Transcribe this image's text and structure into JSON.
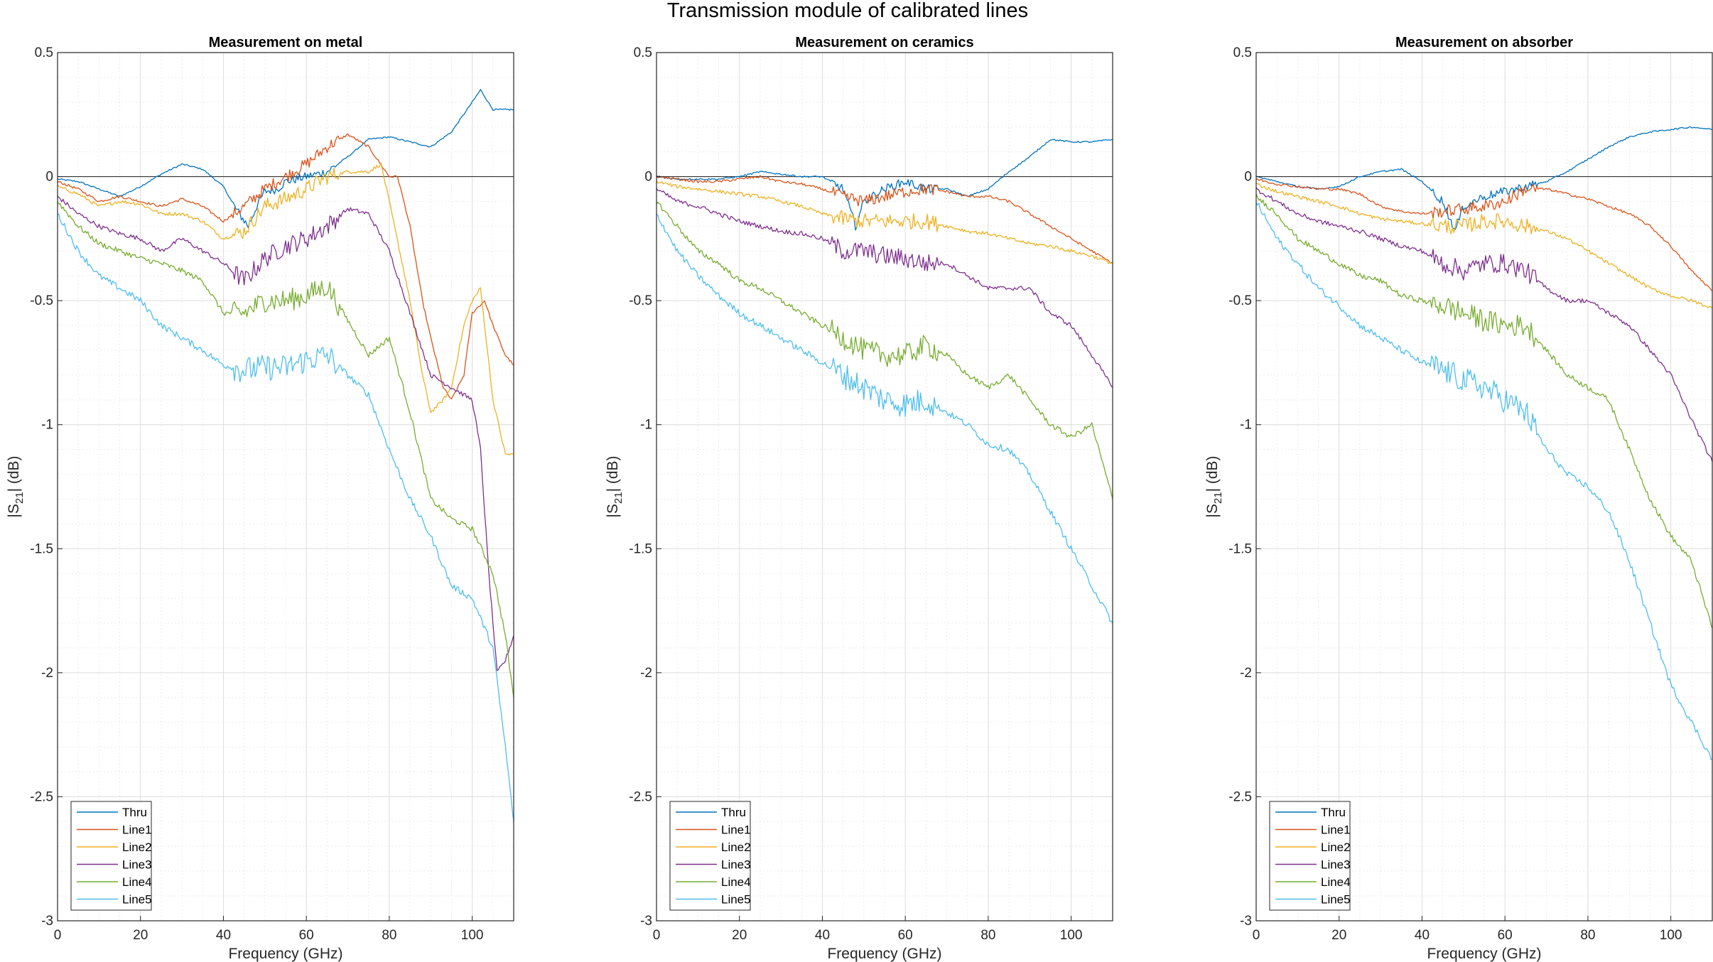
{
  "figure": {
    "title": "Transmission module of calibrated lines"
  },
  "chart_data": [
    {
      "type": "line",
      "title": "Measurement on metal",
      "xlabel": "Frequency (GHz)",
      "ylabel": "|S21| (dB)",
      "xlim": [
        0,
        110
      ],
      "ylim": [
        -3,
        0.5
      ],
      "xticks": [
        "0",
        "20",
        "40",
        "60",
        "80",
        "100"
      ],
      "yticks": [
        "0.5",
        "0",
        "-0.5",
        "-1",
        "-1.5",
        "-2",
        "-2.5",
        "-3"
      ],
      "grid": true,
      "legend": "bottom-left",
      "series": [
        {
          "name": "Thru",
          "color": "#0072BD",
          "x": [
            0,
            5,
            10,
            15,
            20,
            25,
            30,
            35,
            40,
            43,
            46,
            48,
            50,
            53,
            55,
            60,
            65,
            70,
            75,
            80,
            85,
            90,
            95,
            100,
            102,
            105,
            110
          ],
          "y": [
            -0.01,
            -0.02,
            -0.05,
            -0.08,
            -0.04,
            0.01,
            0.05,
            0.03,
            -0.04,
            -0.13,
            -0.2,
            -0.12,
            -0.06,
            -0.05,
            -0.02,
            0.0,
            0.02,
            0.08,
            0.15,
            0.16,
            0.14,
            0.12,
            0.18,
            0.3,
            0.35,
            0.27,
            0.27
          ]
        },
        {
          "name": "Line1",
          "color": "#D95319",
          "x": [
            0,
            5,
            10,
            15,
            20,
            25,
            30,
            35,
            40,
            45,
            50,
            55,
            60,
            65,
            70,
            75,
            80,
            82,
            85,
            88,
            90,
            93,
            95,
            98,
            100,
            103,
            105,
            108,
            110
          ],
          "y": [
            -0.02,
            -0.05,
            -0.1,
            -0.08,
            -0.1,
            -0.12,
            -0.09,
            -0.12,
            -0.18,
            -0.12,
            -0.05,
            0.0,
            0.05,
            0.12,
            0.17,
            0.12,
            0.0,
            0.0,
            -0.2,
            -0.5,
            -0.65,
            -0.85,
            -0.9,
            -0.8,
            -0.55,
            -0.5,
            -0.6,
            -0.72,
            -0.76
          ]
        },
        {
          "name": "Line2",
          "color": "#EDB120",
          "x": [
            0,
            5,
            10,
            15,
            20,
            25,
            30,
            35,
            40,
            45,
            50,
            55,
            60,
            65,
            70,
            75,
            78,
            80,
            85,
            88,
            90,
            93,
            95,
            98,
            100,
            102,
            105,
            108,
            110
          ],
          "y": [
            -0.04,
            -0.07,
            -0.12,
            -0.1,
            -0.11,
            -0.15,
            -0.15,
            -0.18,
            -0.25,
            -0.22,
            -0.12,
            -0.09,
            -0.05,
            0.0,
            0.02,
            0.02,
            0.05,
            -0.1,
            -0.5,
            -0.8,
            -0.95,
            -0.9,
            -0.85,
            -0.6,
            -0.5,
            -0.45,
            -0.9,
            -1.12,
            -1.12
          ]
        },
        {
          "name": "Line3",
          "color": "#7E2F8E",
          "x": [
            0,
            5,
            10,
            15,
            20,
            25,
            30,
            35,
            40,
            45,
            50,
            55,
            60,
            65,
            70,
            75,
            80,
            85,
            90,
            95,
            100,
            102,
            104,
            106,
            108,
            110
          ],
          "y": [
            -0.08,
            -0.15,
            -0.2,
            -0.23,
            -0.25,
            -0.3,
            -0.25,
            -0.3,
            -0.35,
            -0.42,
            -0.33,
            -0.28,
            -0.25,
            -0.2,
            -0.13,
            -0.15,
            -0.3,
            -0.55,
            -0.8,
            -0.85,
            -0.9,
            -1.1,
            -1.6,
            -2.0,
            -1.95,
            -1.85
          ]
        },
        {
          "name": "Line4",
          "color": "#77AC30",
          "x": [
            0,
            5,
            10,
            15,
            20,
            25,
            30,
            35,
            40,
            45,
            50,
            55,
            60,
            65,
            70,
            75,
            80,
            85,
            90,
            95,
            100,
            105,
            108,
            110
          ],
          "y": [
            -0.1,
            -0.2,
            -0.27,
            -0.3,
            -0.33,
            -0.35,
            -0.38,
            -0.42,
            -0.55,
            -0.55,
            -0.5,
            -0.5,
            -0.48,
            -0.44,
            -0.58,
            -0.72,
            -0.65,
            -0.95,
            -1.3,
            -1.38,
            -1.42,
            -1.6,
            -1.85,
            -2.1
          ]
        },
        {
          "name": "Line5",
          "color": "#4DBEEE",
          "x": [
            0,
            5,
            10,
            15,
            20,
            25,
            30,
            35,
            40,
            45,
            50,
            55,
            60,
            65,
            70,
            75,
            80,
            85,
            90,
            95,
            100,
            105,
            108,
            110
          ],
          "y": [
            -0.15,
            -0.3,
            -0.4,
            -0.45,
            -0.5,
            -0.6,
            -0.65,
            -0.7,
            -0.76,
            -0.78,
            -0.77,
            -0.77,
            -0.74,
            -0.72,
            -0.8,
            -0.88,
            -1.1,
            -1.3,
            -1.45,
            -1.65,
            -1.7,
            -1.9,
            -2.3,
            -2.6
          ]
        }
      ]
    },
    {
      "type": "line",
      "title": "Measurement on ceramics",
      "xlabel": "Frequency (GHz)",
      "ylabel": "|S21| (dB)",
      "xlim": [
        0,
        110
      ],
      "ylim": [
        -3,
        0.5
      ],
      "xticks": [
        "0",
        "20",
        "40",
        "60",
        "80",
        "100"
      ],
      "yticks": [
        "0.5",
        "0",
        "-0.5",
        "-1",
        "-1.5",
        "-2",
        "-2.5",
        "-3"
      ],
      "grid": true,
      "legend": "bottom-left",
      "series": [
        {
          "name": "Thru",
          "color": "#0072BD",
          "x": [
            0,
            5,
            10,
            15,
            20,
            25,
            30,
            35,
            40,
            45,
            48,
            50,
            55,
            60,
            65,
            70,
            75,
            80,
            85,
            90,
            95,
            100,
            105,
            110
          ],
          "y": [
            0.0,
            -0.01,
            -0.01,
            -0.01,
            0.0,
            0.02,
            0.01,
            0.0,
            0.0,
            -0.05,
            -0.2,
            -0.1,
            -0.05,
            -0.02,
            -0.05,
            -0.05,
            -0.08,
            -0.05,
            0.02,
            0.08,
            0.15,
            0.14,
            0.14,
            0.15
          ]
        },
        {
          "name": "Line1",
          "color": "#D95319",
          "x": [
            0,
            5,
            10,
            15,
            20,
            25,
            30,
            35,
            40,
            45,
            50,
            55,
            60,
            65,
            70,
            75,
            80,
            85,
            90,
            95,
            100,
            105,
            110
          ],
          "y": [
            0.0,
            -0.01,
            -0.02,
            -0.02,
            -0.01,
            0.0,
            -0.02,
            -0.03,
            -0.05,
            -0.08,
            -0.1,
            -0.08,
            -0.06,
            -0.05,
            -0.06,
            -0.08,
            -0.08,
            -0.1,
            -0.15,
            -0.2,
            -0.25,
            -0.3,
            -0.35
          ]
        },
        {
          "name": "Line2",
          "color": "#EDB120",
          "x": [
            0,
            5,
            10,
            15,
            20,
            25,
            30,
            35,
            40,
            45,
            50,
            55,
            60,
            65,
            70,
            75,
            80,
            85,
            90,
            95,
            100,
            105,
            110
          ],
          "y": [
            -0.02,
            -0.04,
            -0.05,
            -0.06,
            -0.07,
            -0.08,
            -0.1,
            -0.12,
            -0.15,
            -0.17,
            -0.18,
            -0.18,
            -0.18,
            -0.18,
            -0.2,
            -0.22,
            -0.23,
            -0.25,
            -0.27,
            -0.28,
            -0.3,
            -0.32,
            -0.35
          ]
        },
        {
          "name": "Line3",
          "color": "#7E2F8E",
          "x": [
            0,
            5,
            10,
            15,
            20,
            25,
            30,
            35,
            40,
            45,
            50,
            55,
            60,
            65,
            70,
            75,
            80,
            85,
            90,
            95,
            100,
            105,
            110
          ],
          "y": [
            -0.05,
            -0.1,
            -0.12,
            -0.15,
            -0.18,
            -0.2,
            -0.22,
            -0.23,
            -0.25,
            -0.3,
            -0.3,
            -0.32,
            -0.33,
            -0.35,
            -0.35,
            -0.4,
            -0.45,
            -0.45,
            -0.45,
            -0.55,
            -0.6,
            -0.72,
            -0.85
          ]
        },
        {
          "name": "Line4",
          "color": "#77AC30",
          "x": [
            0,
            5,
            10,
            15,
            20,
            25,
            30,
            35,
            40,
            45,
            50,
            55,
            60,
            65,
            70,
            75,
            80,
            85,
            90,
            95,
            100,
            105,
            110
          ],
          "y": [
            -0.1,
            -0.2,
            -0.3,
            -0.35,
            -0.42,
            -0.45,
            -0.5,
            -0.55,
            -0.6,
            -0.65,
            -0.7,
            -0.72,
            -0.72,
            -0.68,
            -0.72,
            -0.8,
            -0.85,
            -0.8,
            -0.9,
            -1.0,
            -1.05,
            -1.0,
            -1.3
          ]
        },
        {
          "name": "Line5",
          "color": "#4DBEEE",
          "x": [
            0,
            5,
            10,
            15,
            20,
            25,
            30,
            35,
            40,
            45,
            50,
            55,
            60,
            65,
            70,
            75,
            80,
            85,
            90,
            95,
            100,
            105,
            110
          ],
          "y": [
            -0.15,
            -0.3,
            -0.4,
            -0.48,
            -0.55,
            -0.6,
            -0.65,
            -0.7,
            -0.75,
            -0.8,
            -0.85,
            -0.9,
            -0.92,
            -0.9,
            -0.95,
            -1.0,
            -1.08,
            -1.1,
            -1.2,
            -1.35,
            -1.5,
            -1.65,
            -1.8
          ]
        }
      ]
    },
    {
      "type": "line",
      "title": "Measurement on absorber",
      "xlabel": "Frequency (GHz)",
      "ylabel": "|S21| (dB)",
      "xlim": [
        0,
        110
      ],
      "ylim": [
        -3,
        0.5
      ],
      "xticks": [
        "0",
        "20",
        "40",
        "60",
        "80",
        "100"
      ],
      "yticks": [
        "0.5",
        "0",
        "-0.5",
        "-1",
        "-1.5",
        "-2",
        "-2.5",
        "-3"
      ],
      "grid": true,
      "legend": "bottom-left",
      "series": [
        {
          "name": "Thru",
          "color": "#0072BD",
          "x": [
            0,
            5,
            10,
            15,
            20,
            25,
            30,
            35,
            40,
            45,
            48,
            50,
            55,
            60,
            65,
            70,
            75,
            80,
            85,
            90,
            95,
            100,
            105,
            110
          ],
          "y": [
            0.0,
            -0.02,
            -0.04,
            -0.05,
            -0.04,
            0.0,
            0.02,
            0.03,
            -0.02,
            -0.1,
            -0.22,
            -0.12,
            -0.08,
            -0.06,
            -0.04,
            -0.02,
            0.02,
            0.07,
            0.12,
            0.16,
            0.18,
            0.19,
            0.2,
            0.19
          ]
        },
        {
          "name": "Line1",
          "color": "#D95319",
          "x": [
            0,
            5,
            10,
            15,
            20,
            25,
            30,
            35,
            40,
            45,
            50,
            55,
            60,
            65,
            70,
            75,
            80,
            85,
            90,
            95,
            100,
            105,
            110
          ],
          "y": [
            -0.01,
            -0.03,
            -0.04,
            -0.05,
            -0.05,
            -0.07,
            -0.12,
            -0.14,
            -0.15,
            -0.14,
            -0.13,
            -0.12,
            -0.1,
            -0.05,
            -0.05,
            -0.07,
            -0.09,
            -0.12,
            -0.15,
            -0.2,
            -0.28,
            -0.38,
            -0.46
          ]
        },
        {
          "name": "Line2",
          "color": "#EDB120",
          "x": [
            0,
            5,
            10,
            15,
            20,
            25,
            30,
            35,
            40,
            45,
            50,
            55,
            60,
            65,
            70,
            75,
            80,
            85,
            90,
            95,
            100,
            105,
            110
          ],
          "y": [
            -0.03,
            -0.06,
            -0.08,
            -0.1,
            -0.12,
            -0.15,
            -0.17,
            -0.18,
            -0.19,
            -0.2,
            -0.2,
            -0.18,
            -0.18,
            -0.2,
            -0.22,
            -0.25,
            -0.3,
            -0.35,
            -0.4,
            -0.45,
            -0.48,
            -0.5,
            -0.53
          ]
        },
        {
          "name": "Line3",
          "color": "#7E2F8E",
          "x": [
            0,
            5,
            10,
            15,
            20,
            25,
            30,
            35,
            40,
            45,
            50,
            55,
            60,
            65,
            70,
            75,
            80,
            85,
            90,
            95,
            100,
            105,
            110
          ],
          "y": [
            -0.05,
            -0.1,
            -0.15,
            -0.18,
            -0.2,
            -0.22,
            -0.25,
            -0.28,
            -0.3,
            -0.35,
            -0.38,
            -0.35,
            -0.35,
            -0.38,
            -0.45,
            -0.5,
            -0.5,
            -0.55,
            -0.6,
            -0.7,
            -0.8,
            -0.98,
            -1.15
          ]
        },
        {
          "name": "Line4",
          "color": "#77AC30",
          "x": [
            0,
            5,
            10,
            15,
            20,
            25,
            30,
            35,
            40,
            45,
            50,
            55,
            60,
            65,
            70,
            75,
            80,
            85,
            90,
            95,
            100,
            105,
            110
          ],
          "y": [
            -0.08,
            -0.15,
            -0.25,
            -0.3,
            -0.35,
            -0.4,
            -0.42,
            -0.48,
            -0.5,
            -0.52,
            -0.55,
            -0.58,
            -0.6,
            -0.6,
            -0.7,
            -0.8,
            -0.85,
            -0.9,
            -1.1,
            -1.3,
            -1.45,
            -1.55,
            -1.82
          ]
        },
        {
          "name": "Line5",
          "color": "#4DBEEE",
          "x": [
            0,
            5,
            10,
            15,
            20,
            25,
            30,
            35,
            40,
            45,
            50,
            55,
            60,
            65,
            70,
            75,
            80,
            85,
            90,
            95,
            100,
            105,
            110
          ],
          "y": [
            -0.1,
            -0.25,
            -0.35,
            -0.45,
            -0.52,
            -0.6,
            -0.65,
            -0.7,
            -0.75,
            -0.78,
            -0.82,
            -0.85,
            -0.9,
            -0.95,
            -1.1,
            -1.2,
            -1.25,
            -1.35,
            -1.55,
            -1.8,
            -2.05,
            -2.2,
            -2.35
          ]
        }
      ]
    }
  ]
}
